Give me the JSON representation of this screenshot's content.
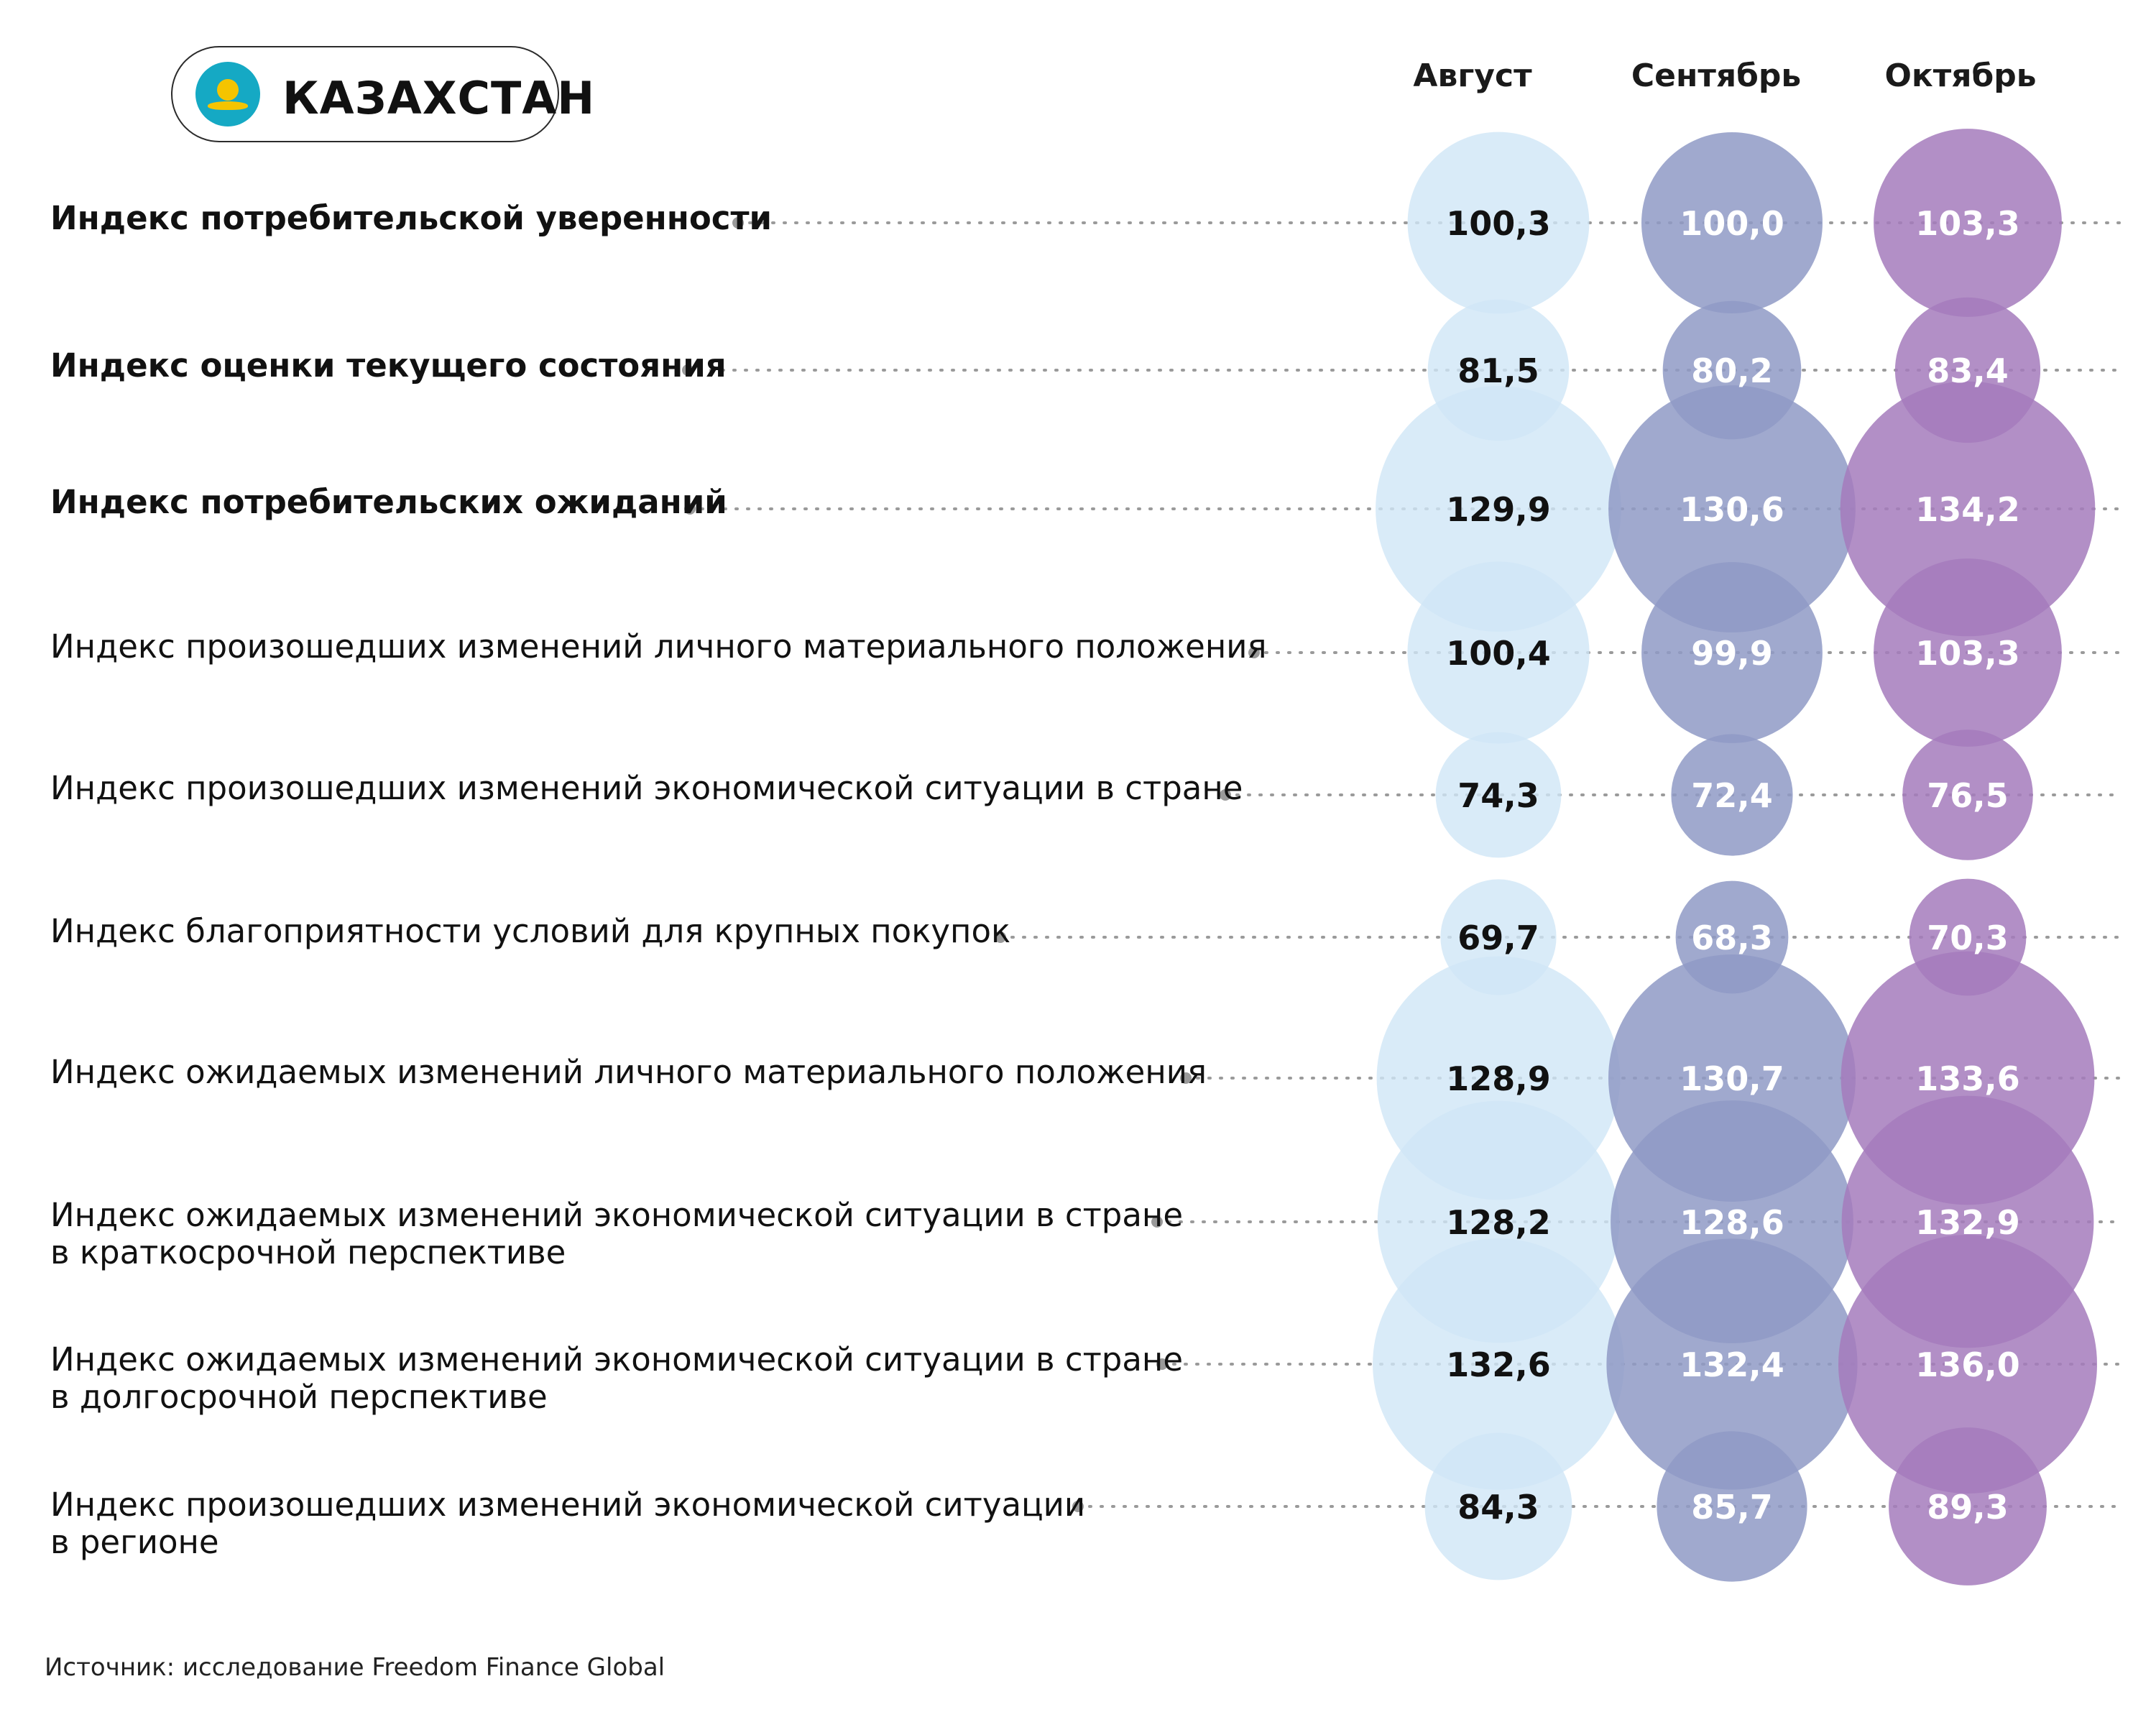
{
  "country": {
    "name": "КАЗАХСТАН",
    "flag_icon": "kazakhstan-flag-icon"
  },
  "colors": {
    "august": "#cfe6f6",
    "september": "#8f9ac6",
    "october": "#a57bbc",
    "label_dark": "#111111",
    "label_light": "#ffffff",
    "dots": "#9a9a9a"
  },
  "source": "Источник: исследование Freedom Finance Global",
  "chart_data": {
    "type": "table",
    "columns": [
      "Август",
      "Сентябрь",
      "Октябрь"
    ],
    "rows": [
      {
        "label": [
          "Индекс потребительской уверенности"
        ],
        "bold": true,
        "values": [
          "100,3",
          "100,0",
          "103,3"
        ]
      },
      {
        "label": [
          "Индекс оценки текущего состояния"
        ],
        "bold": true,
        "values": [
          "81,5",
          "80,2",
          "83,4"
        ]
      },
      {
        "label": [
          "Индекс потребительских ожиданий"
        ],
        "bold": true,
        "values": [
          "129,9",
          "130,6",
          "134,2"
        ]
      },
      {
        "label": [
          "Индекс произошедших изменений личного материального положения"
        ],
        "bold": false,
        "values": [
          "100,4",
          "99,9",
          "103,3"
        ]
      },
      {
        "label": [
          "Индекс произошедших изменений экономической ситуации в стране"
        ],
        "bold": false,
        "values": [
          "74,3",
          "72,4",
          "76,5"
        ]
      },
      {
        "label": [
          "Индекс благоприятности условий для крупных покупок"
        ],
        "bold": false,
        "values": [
          "69,7",
          "68,3",
          "70,3"
        ]
      },
      {
        "label": [
          "Индекс ожидаемых изменений личного материального положения"
        ],
        "bold": false,
        "values": [
          "128,9",
          "130,7",
          "133,6"
        ]
      },
      {
        "label": [
          "Индекс ожидаемых изменений экономической ситуации в стране",
          "в краткосрочной перспективе"
        ],
        "bold": false,
        "values": [
          "128,2",
          "128,6",
          "132,9"
        ]
      },
      {
        "label": [
          "Индекс ожидаемых изменений экономической ситуации в стране",
          "в долгосрочной перспективе"
        ],
        "bold": false,
        "values": [
          "132,6",
          "132,4",
          "136,0"
        ]
      },
      {
        "label": [
          "Индекс произошедших изменений экономической ситуации",
          "в регионе"
        ],
        "bold": false,
        "values": [
          "84,3",
          "85,7",
          "89,3"
        ]
      }
    ]
  }
}
